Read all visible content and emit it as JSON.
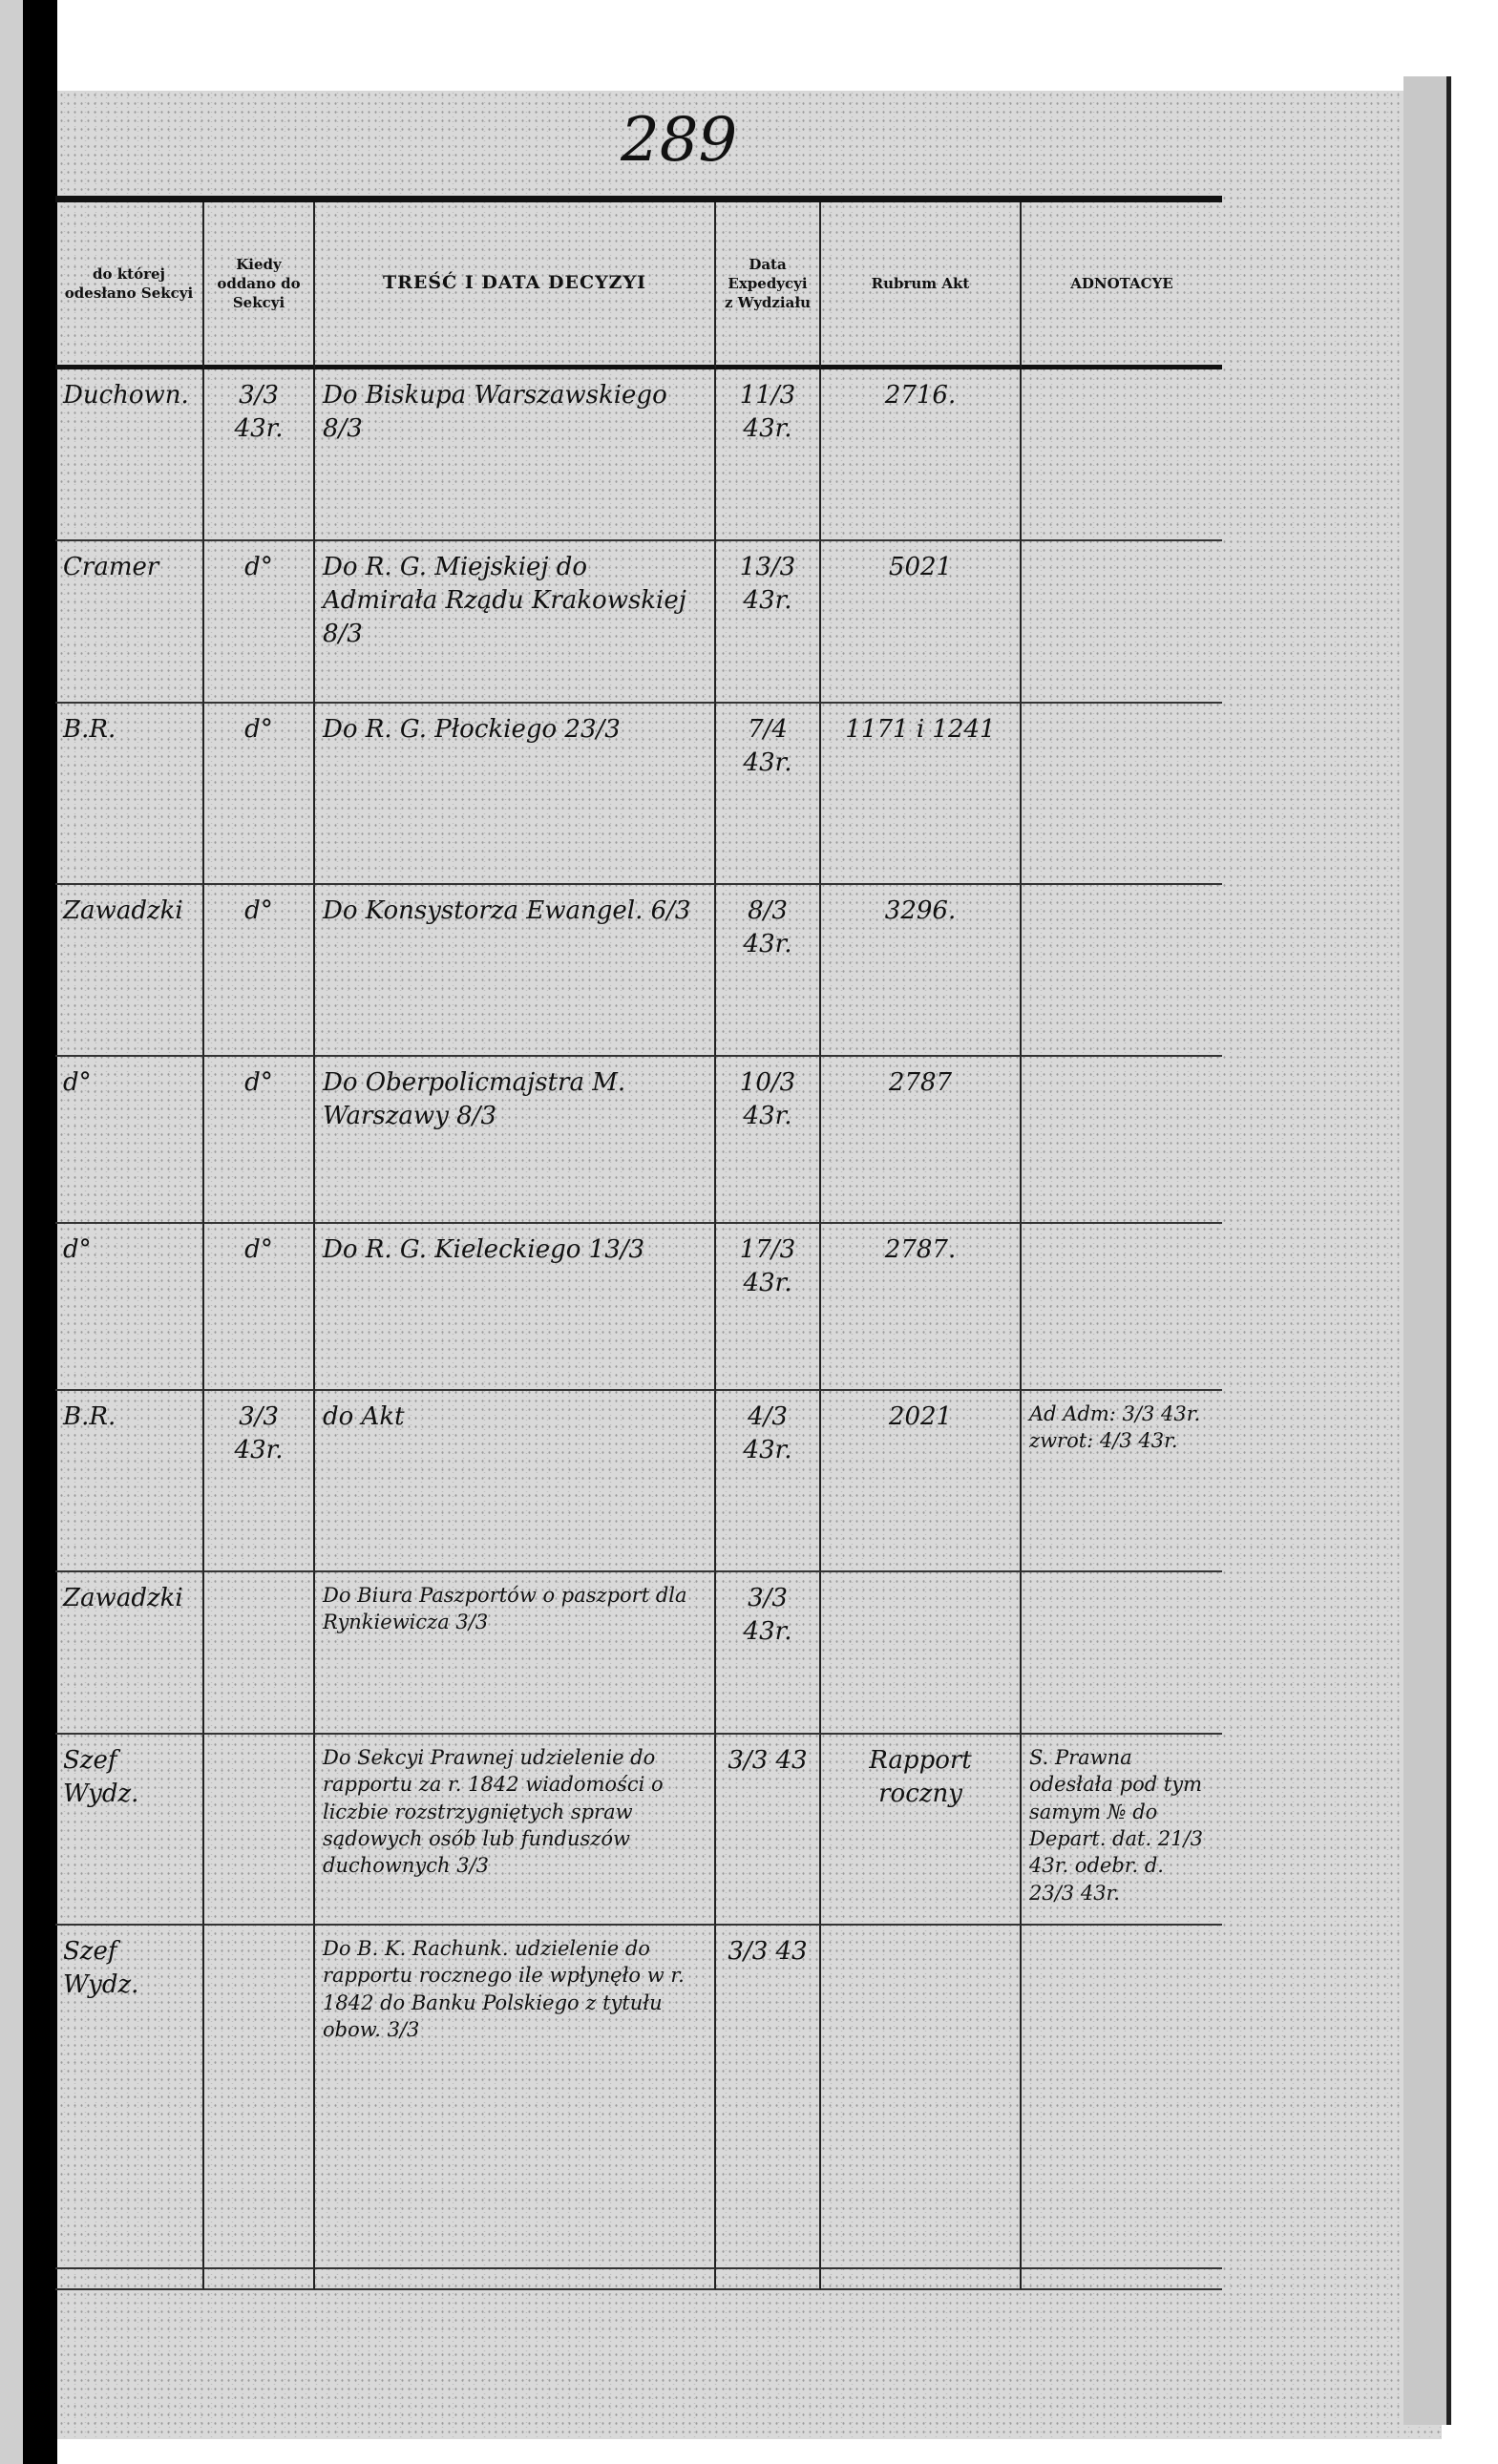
{
  "page_number": "289",
  "headers": {
    "section": "do której odesłano Sekcyi",
    "when_handed": "Kiedy oddano do Sekcyi",
    "content": "TREŚĆ I DATA DECYZYI",
    "expedition": "Data Expedycyi z Wydziału",
    "rubrum": "Rubrum Akt",
    "annotations": "ADNOTACYE"
  },
  "rows": [
    {
      "section": "Duchown.",
      "when": "3/3 43r.",
      "content": "Do Biskupa Warszawskiego 8/3",
      "expedition": "11/3 43r.",
      "rubrum": "2716.",
      "notes": ""
    },
    {
      "section": "Cramer",
      "when": "d°",
      "content": "Do R. G. Miejskiej do Admirała Rządu Krakowskiej 8/3",
      "expedition": "13/3 43r.",
      "rubrum": "5021",
      "notes": ""
    },
    {
      "section": "B.R.",
      "when": "d°",
      "content": "Do R. G. Płockiego 23/3",
      "expedition": "7/4 43r.",
      "rubrum": "1171 i 1241",
      "notes": ""
    },
    {
      "section": "Zawadzki",
      "when": "d°",
      "content": "Do Konsystorza Ewangel. 6/3",
      "expedition": "8/3 43r.",
      "rubrum": "3296.",
      "notes": ""
    },
    {
      "section": "d°",
      "when": "d°",
      "content": "Do Oberpolicmajstra M. Warszawy 8/3",
      "expedition": "10/3 43r.",
      "rubrum": "2787",
      "notes": ""
    },
    {
      "section": "d°",
      "when": "d°",
      "content": "Do R. G. Kieleckiego 13/3",
      "expedition": "17/3 43r.",
      "rubrum": "2787.",
      "notes": ""
    },
    {
      "section": "B.R.",
      "when": "3/3 43r.",
      "content": "do Akt",
      "expedition": "4/3 43r.",
      "rubrum": "2021",
      "notes": "Ad Adm: 3/3 43r. zwrot: 4/3 43r."
    },
    {
      "section": "Zawadzki",
      "when": "",
      "content": "Do Biura Paszportów o paszport dla Rynkiewicza 3/3",
      "expedition": "3/3 43r.",
      "rubrum": "",
      "notes": ""
    },
    {
      "section": "Szef Wydz.",
      "when": "",
      "content": "Do Sekcyi Prawnej udzielenie do rapportu za r. 1842 wiadomości o liczbie rozstrzygniętych spraw sądowych osób lub funduszów duchownych 3/3",
      "expedition": "3/3 43",
      "rubrum": "Rapport roczny",
      "notes": "S. Prawna odesłała pod tym samym № do Depart. dat. 21/3 43r. odebr. d. 23/3 43r."
    },
    {
      "section": "Szef Wydz.",
      "when": "",
      "content": "Do B. K. Rachunk. udzielenie do rapportu rocznego ile wpłynęło w r. 1842 do Banku Polskiego z tytułu obow. 3/3",
      "expedition": "3/3 43",
      "rubrum": "",
      "notes": ""
    }
  ]
}
